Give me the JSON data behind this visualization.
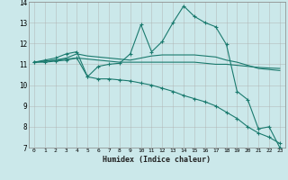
{
  "xlabel": "Humidex (Indice chaleur)",
  "background_color": "#cbe8ea",
  "grid_color": "#b0b0b0",
  "line_color": "#1a7a6e",
  "xlim": [
    -0.5,
    23.5
  ],
  "ylim": [
    7,
    14
  ],
  "xticks": [
    0,
    1,
    2,
    3,
    4,
    5,
    6,
    7,
    8,
    9,
    10,
    11,
    12,
    13,
    14,
    15,
    16,
    17,
    18,
    19,
    20,
    21,
    22,
    23
  ],
  "yticks": [
    7,
    8,
    9,
    10,
    11,
    12,
    13,
    14
  ],
  "line1_x": [
    0,
    1,
    2,
    3,
    4,
    5,
    6,
    7,
    8,
    9,
    10,
    11,
    12,
    13,
    14,
    15,
    16,
    17,
    18,
    19,
    20,
    21,
    22,
    23
  ],
  "line1_y": [
    11.1,
    11.2,
    11.3,
    11.5,
    11.6,
    10.4,
    10.9,
    11.0,
    11.05,
    11.5,
    12.9,
    11.6,
    12.1,
    13.0,
    13.8,
    13.3,
    13.0,
    12.8,
    11.95,
    9.7,
    9.3,
    7.9,
    8.0,
    7.0
  ],
  "line2_x": [
    0,
    1,
    2,
    3,
    4,
    5,
    6,
    7,
    8,
    9,
    10,
    11,
    12,
    13,
    14,
    15,
    16,
    17,
    18,
    19,
    20,
    21,
    22,
    23
  ],
  "line2_y": [
    11.1,
    11.15,
    11.2,
    11.25,
    11.3,
    11.25,
    11.2,
    11.15,
    11.1,
    11.1,
    11.1,
    11.1,
    11.1,
    11.1,
    11.1,
    11.1,
    11.05,
    11.0,
    11.0,
    10.95,
    10.9,
    10.85,
    10.82,
    10.8
  ],
  "line3_x": [
    0,
    1,
    2,
    3,
    4,
    5,
    6,
    7,
    8,
    9,
    10,
    11,
    12,
    13,
    14,
    15,
    16,
    17,
    18,
    19,
    20,
    21,
    22,
    23
  ],
  "line3_y": [
    11.1,
    11.15,
    11.2,
    11.3,
    11.5,
    11.4,
    11.35,
    11.3,
    11.25,
    11.2,
    11.3,
    11.4,
    11.45,
    11.45,
    11.45,
    11.45,
    11.4,
    11.35,
    11.2,
    11.1,
    10.95,
    10.8,
    10.75,
    10.7
  ],
  "line4_x": [
    0,
    1,
    2,
    3,
    4,
    5,
    6,
    7,
    8,
    9,
    10,
    11,
    12,
    13,
    14,
    15,
    16,
    17,
    18,
    19,
    20,
    21,
    22,
    23
  ],
  "line4_y": [
    11.1,
    11.1,
    11.15,
    11.2,
    11.3,
    10.4,
    10.3,
    10.3,
    10.25,
    10.2,
    10.1,
    10.0,
    9.85,
    9.7,
    9.5,
    9.35,
    9.2,
    9.0,
    8.7,
    8.4,
    8.0,
    7.7,
    7.5,
    7.2
  ]
}
